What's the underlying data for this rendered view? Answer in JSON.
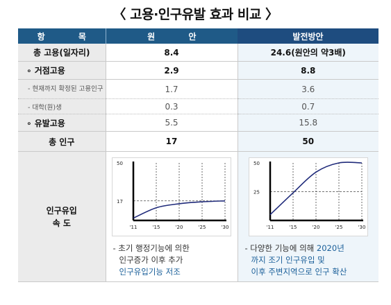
{
  "title": "〈 고용·인구유발 효과 비교 〉",
  "header": {
    "col1": "항 목",
    "col2": "원 안",
    "col3": "발전방안"
  },
  "rows": {
    "total": {
      "label": "총 고용(일자리)",
      "v1": "8.4",
      "v2": "24.6(원안의 약3배)"
    },
    "base": {
      "label": "∘ 거점고용",
      "v1": "2.9",
      "v2": "8.8"
    },
    "confirmed": {
      "label": "- 현재까지 확정된 고용인구",
      "v1": "1.7",
      "v2": "3.6"
    },
    "univ": {
      "label": "- 대학(원)생",
      "v1": "0.3",
      "v2": "0.7"
    },
    "induced": {
      "label": "∘ 유발고용",
      "v1": "5.5",
      "v2": "15.8"
    },
    "population": {
      "label": "총 인구",
      "v1": "17",
      "v2": "50"
    },
    "inflow": {
      "label_line1": "인구유입",
      "label_line2": "속 도"
    }
  },
  "desc1": {
    "line1": "- 초기 행정기능에 의한",
    "line2": "인구증가 이후 추가",
    "line3": "인구유입기능 저조"
  },
  "desc2": {
    "line1": "- 다양한 기능에 의해 ",
    "line1_blue": "2020년",
    "line2": "까지 조기 인구유입 및",
    "line3": "이후 주변지역으로 인구 확산"
  },
  "chart_data": [
    {
      "type": "line",
      "x": [
        "'11",
        "'15",
        "'20",
        "'25",
        "'30"
      ],
      "y_ticks": [
        17,
        50
      ],
      "ylim": [
        0,
        50
      ],
      "series": [
        {
          "values": [
            2,
            11,
            14.5,
            16.2,
            17
          ]
        }
      ],
      "reference_line": 17,
      "color": "#1f2a7a"
    },
    {
      "type": "line",
      "x": [
        "'11",
        "'15",
        "'20",
        "'25",
        "'30"
      ],
      "y_ticks": [
        25,
        50
      ],
      "ylim": [
        0,
        50
      ],
      "series": [
        {
          "values": [
            5,
            24,
            42,
            50,
            50
          ]
        }
      ],
      "reference_line": 25,
      "color": "#1f2a7a"
    }
  ]
}
